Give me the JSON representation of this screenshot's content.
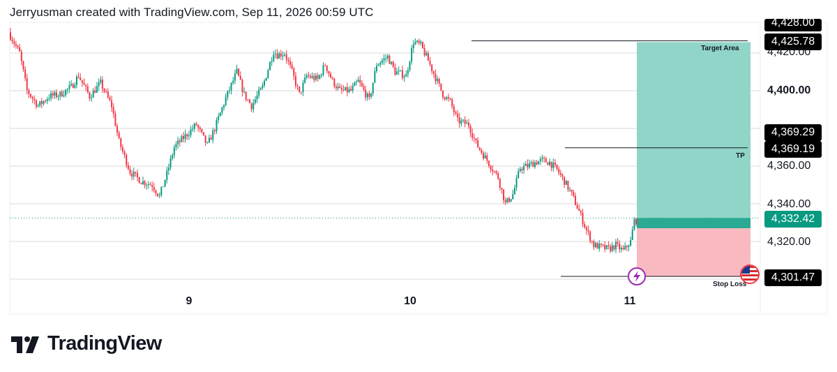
{
  "header": {
    "attribution": "Jerryusman created with TradingView.com, Sep 11, 2026 00:59 UTC"
  },
  "logo": {
    "text": "TradingView",
    "icon": "tradingview-logo-icon"
  },
  "colors": {
    "up": "#089981",
    "down": "#F23645",
    "target_zone": "#90D5C7",
    "stop_zone": "#F9B9C1",
    "grid": "#D9D9DE"
  },
  "icons": {
    "event_marker": "lightning-bolt-icon",
    "country_flag": "us-flag-icon"
  },
  "chart_data": {
    "type": "candlestick",
    "symbol": "",
    "x_ticks": [
      "9",
      "10",
      "11"
    ],
    "y_ticks": [
      "4,420.00",
      "4,400.00",
      "4,360.00",
      "4,340.00",
      "4,320.00"
    ],
    "y_axis_bold_tick": "4,400.00",
    "ylim": [
      4297,
      4430
    ],
    "grid": true,
    "price_labels": {
      "top_partial": "4,428.00",
      "target": "4,425.78",
      "tp_high": "4,369.29",
      "tp": "4,369.19",
      "current": "4,332.42",
      "stop_loss": "4,301.47"
    },
    "annotations": {
      "target_label": "Target Area",
      "tp_label": "TP",
      "stop_label": "Stop Loss"
    },
    "levels": {
      "target": 4425.78,
      "tp": 4369.19,
      "entry": 4332.42,
      "stop_loss": 4301.47,
      "box_entry_line": 4327
    },
    "anchors": [
      [
        0,
        4431
      ],
      [
        6,
        4420
      ],
      [
        10,
        4400
      ],
      [
        16,
        4392
      ],
      [
        22,
        4397
      ],
      [
        28,
        4398
      ],
      [
        34,
        4402
      ],
      [
        38,
        4408
      ],
      [
        44,
        4397
      ],
      [
        50,
        4404
      ],
      [
        56,
        4392
      ],
      [
        60,
        4373
      ],
      [
        66,
        4357
      ],
      [
        72,
        4352
      ],
      [
        78,
        4350
      ],
      [
        82,
        4344
      ],
      [
        86,
        4356
      ],
      [
        90,
        4370
      ],
      [
        96,
        4376
      ],
      [
        102,
        4382
      ],
      [
        108,
        4371
      ],
      [
        112,
        4380
      ],
      [
        118,
        4396
      ],
      [
        124,
        4410
      ],
      [
        128,
        4398
      ],
      [
        132,
        4392
      ],
      [
        138,
        4402
      ],
      [
        144,
        4421
      ],
      [
        146,
        4419
      ],
      [
        150,
        4420
      ],
      [
        154,
        4410
      ],
      [
        158,
        4398
      ],
      [
        162,
        4408
      ],
      [
        168,
        4406
      ],
      [
        172,
        4414
      ],
      [
        176,
        4405
      ],
      [
        180,
        4400
      ],
      [
        186,
        4400
      ],
      [
        190,
        4405
      ],
      [
        196,
        4395
      ],
      [
        200,
        4414
      ],
      [
        206,
        4418
      ],
      [
        210,
        4410
      ],
      [
        216,
        4408
      ],
      [
        220,
        4426
      ],
      [
        224,
        4424
      ],
      [
        228,
        4416
      ],
      [
        232,
        4407
      ],
      [
        236,
        4398
      ],
      [
        240,
        4394
      ],
      [
        244,
        4384
      ],
      [
        250,
        4382
      ],
      [
        254,
        4372
      ],
      [
        258,
        4366
      ],
      [
        262,
        4360
      ],
      [
        266,
        4354
      ],
      [
        270,
        4340
      ],
      [
        274,
        4345
      ],
      [
        278,
        4359
      ],
      [
        282,
        4360
      ],
      [
        286,
        4362
      ],
      [
        290,
        4363
      ],
      [
        294,
        4362
      ],
      [
        298,
        4358
      ],
      [
        302,
        4352
      ],
      [
        306,
        4345
      ],
      [
        310,
        4336
      ],
      [
        314,
        4326
      ],
      [
        318,
        4318
      ],
      [
        322,
        4317
      ],
      [
        326,
        4316
      ],
      [
        330,
        4318
      ],
      [
        334,
        4315
      ],
      [
        338,
        4320
      ],
      [
        340,
        4331
      ]
    ]
  }
}
